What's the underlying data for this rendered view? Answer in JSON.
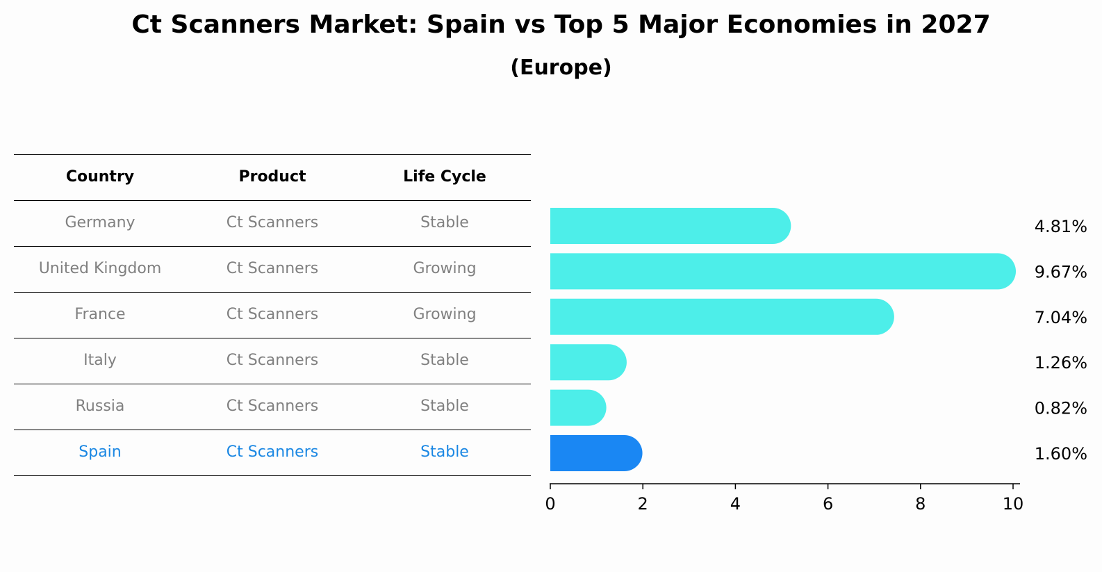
{
  "title": "Ct Scanners Market: Spain vs Top 5 Major Economies in 2027",
  "subtitle": "(Europe)",
  "table": {
    "headers": [
      "Country",
      "Product",
      "Life Cycle"
    ],
    "rows": [
      [
        "Germany",
        "Ct Scanners",
        "Stable"
      ],
      [
        "United Kingdom",
        "Ct Scanners",
        "Growing"
      ],
      [
        "France",
        "Ct Scanners",
        "Growing"
      ],
      [
        "Italy",
        "Ct Scanners",
        "Stable"
      ],
      [
        "Russia",
        "Ct Scanners",
        "Stable"
      ],
      [
        "Spain",
        "Ct Scanners",
        "Stable"
      ]
    ],
    "highlight_row": 5
  },
  "colors": {
    "bar": "#4deee9",
    "highlight": "#1a87f3",
    "highlight_text": "#1a87e3",
    "body_text": "#808080"
  },
  "chart_data": {
    "type": "bar",
    "orientation": "horizontal",
    "categories": [
      "Germany",
      "United Kingdom",
      "France",
      "Italy",
      "Russia",
      "Spain"
    ],
    "values": [
      4.81,
      9.67,
      7.04,
      1.26,
      0.82,
      1.6
    ],
    "value_labels": [
      "4.81%",
      "9.67%",
      "7.04%",
      "1.26%",
      "0.82%",
      "1.60%"
    ],
    "xlim": [
      0,
      10
    ],
    "xticks": [
      0,
      2,
      4,
      6,
      8,
      10
    ],
    "xlabel": "",
    "ylabel": "",
    "highlight_category": "Spain",
    "grid": false
  }
}
